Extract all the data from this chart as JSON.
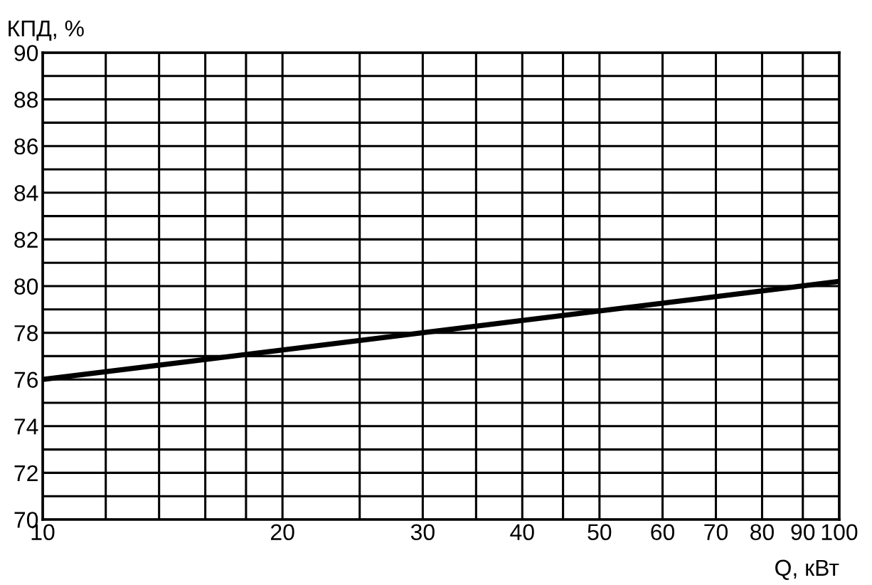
{
  "chart_data": {
    "type": "line",
    "xlabel": "Q, кВт",
    "ylabel": "КПД, %",
    "log": "x",
    "grid": true,
    "marker": "none",
    "line_style": "solid",
    "xlim": [
      10,
      100
    ],
    "ylim": [
      70,
      90
    ],
    "xticks": [
      10,
      {
        "value": 12,
        "label": null
      },
      {
        "value": 14,
        "label": null
      },
      {
        "value": 16,
        "label": null
      },
      {
        "value": 18,
        "label": null
      },
      20,
      {
        "value": 25,
        "label": null
      },
      30,
      {
        "value": 35,
        "label": null
      },
      40,
      {
        "value": 45,
        "label": null
      },
      50,
      60,
      70,
      80,
      90,
      100
    ],
    "yticks": [
      70,
      {
        "value": 71,
        "label": null
      },
      72,
      {
        "value": 73,
        "label": null
      },
      74,
      {
        "value": 75,
        "label": null
      },
      76,
      {
        "value": 77,
        "label": null
      },
      78,
      {
        "value": 79,
        "label": null
      },
      80,
      {
        "value": 81,
        "label": null
      },
      82,
      {
        "value": 83,
        "label": null
      },
      84,
      {
        "value": 85,
        "label": null
      },
      86,
      {
        "value": 87,
        "label": null
      },
      88,
      {
        "value": 89,
        "label": null
      },
      90
    ],
    "series": [
      {
        "color": "#000000",
        "x": [
          10,
          100
        ],
        "values": [
          76,
          80.2
        ]
      }
    ]
  }
}
